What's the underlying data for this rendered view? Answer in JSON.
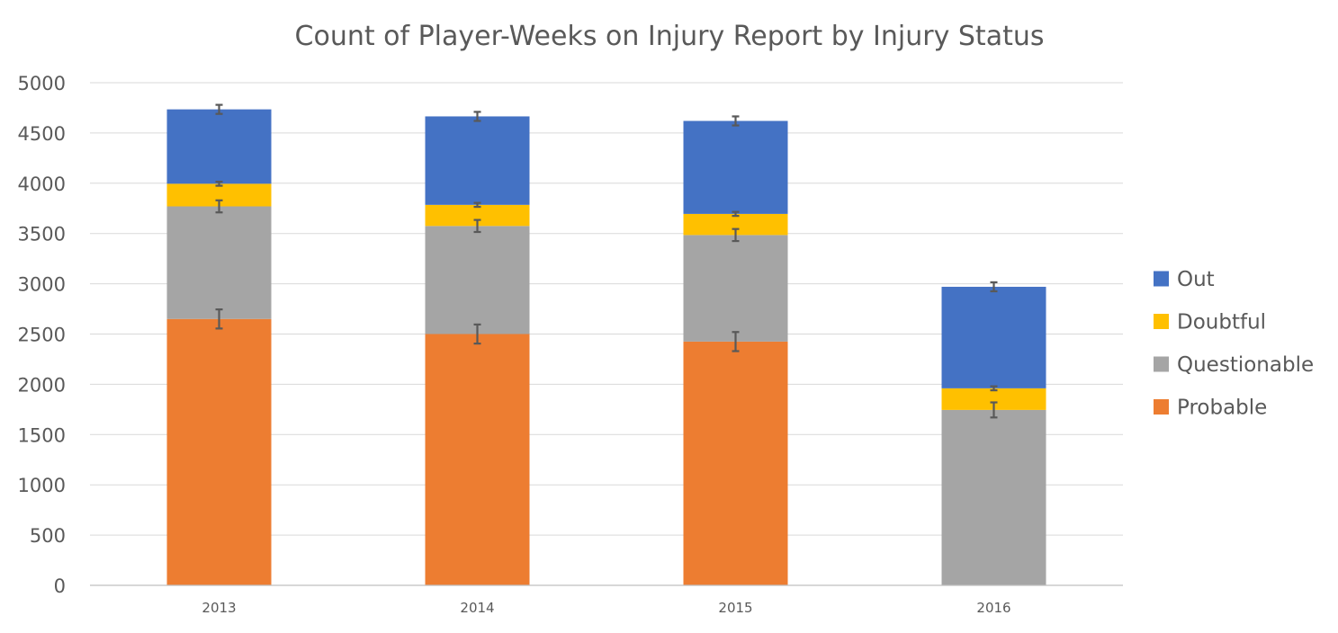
{
  "chart_data": {
    "type": "bar",
    "stacked": true,
    "title": "Count of Player-Weeks on Injury Report by Injury Status",
    "xlabel": "",
    "ylabel": "",
    "categories": [
      "2013",
      "2014",
      "2015",
      "2016"
    ],
    "ylim": [
      0,
      5000
    ],
    "yticks": [
      0,
      500,
      1000,
      1500,
      2000,
      2500,
      3000,
      3500,
      4000,
      4500,
      5000
    ],
    "grid": true,
    "legend_position": "right",
    "series": [
      {
        "name": "Probable",
        "color": "#ED7D31",
        "values": [
          2650,
          2500,
          2425,
          0
        ],
        "errors": [
          95,
          95,
          95,
          0
        ]
      },
      {
        "name": "Questionable",
        "color": "#A5A5A5",
        "values": [
          1120,
          1075,
          1060,
          1745
        ],
        "errors": [
          60,
          60,
          60,
          75
        ]
      },
      {
        "name": "Doubtful",
        "color": "#FFC000",
        "values": [
          225,
          210,
          210,
          215
        ],
        "errors": [
          20,
          20,
          20,
          20
        ]
      },
      {
        "name": "Out",
        "color": "#4472C4",
        "values": [
          740,
          880,
          925,
          1010
        ],
        "errors": [
          45,
          45,
          45,
          45
        ]
      }
    ],
    "legend_order": [
      "Out",
      "Doubtful",
      "Questionable",
      "Probable"
    ]
  }
}
